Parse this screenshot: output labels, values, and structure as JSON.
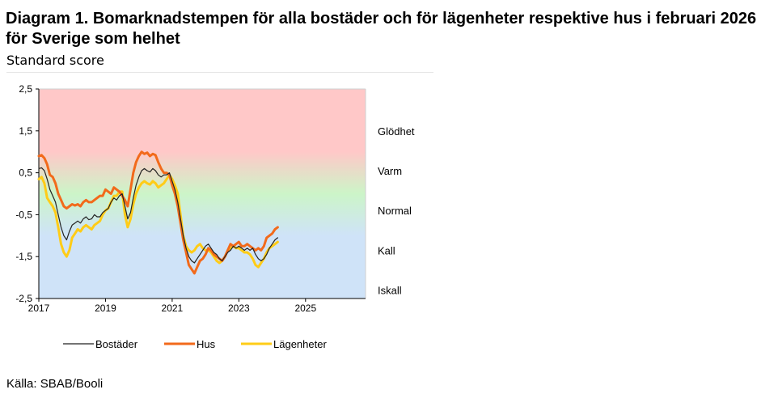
{
  "title": "Diagram 1. Bomarknadstempen för alla bostäder och för lägenheter respektive hus i februari 2026 för Sverige som helhet",
  "subtitle": "Standard score",
  "source": "Källa: SBAB/Booli",
  "colors": {
    "bostader": "#222222",
    "hus": "#f26a1b",
    "lagenheter": "#ffcc17",
    "zone_hot": "#ffc8c8",
    "zone_normal": "#ccf5c8",
    "zone_cold": "#cfe3f8"
  },
  "chart_data": {
    "type": "line",
    "x_start": 2017.0,
    "x_step_months": 1,
    "xlim": [
      2017.0,
      2026.8
    ],
    "ylim": [
      -2.5,
      2.5
    ],
    "ylabel": "Standard score",
    "x_ticks": [
      "2017",
      "2019",
      "2021",
      "2023",
      "2025"
    ],
    "y_ticks": [
      "2,5",
      "1,5",
      "0,5",
      "-0,5",
      "-1,5",
      "-2,5"
    ],
    "zones": [
      {
        "label": "Glödhet",
        "y": 1.5
      },
      {
        "label": "Varm",
        "y": 0.55
      },
      {
        "label": "Normal",
        "y": -0.4
      },
      {
        "label": "Kall",
        "y": -1.35
      },
      {
        "label": "Iskall",
        "y": -2.3
      }
    ],
    "series": [
      {
        "name": "Bostäder",
        "key": "bostader",
        "values": [
          0.6,
          0.62,
          0.55,
          0.35,
          0.1,
          -0.05,
          -0.2,
          -0.5,
          -0.8,
          -1.0,
          -1.1,
          -0.9,
          -0.75,
          -0.7,
          -0.65,
          -0.7,
          -0.6,
          -0.55,
          -0.62,
          -0.6,
          -0.5,
          -0.55,
          -0.55,
          -0.45,
          -0.4,
          -0.35,
          -0.2,
          -0.1,
          -0.15,
          -0.05,
          0.0,
          -0.3,
          -0.6,
          -0.45,
          -0.1,
          0.2,
          0.4,
          0.55,
          0.6,
          0.55,
          0.52,
          0.6,
          0.55,
          0.45,
          0.4,
          0.45,
          0.45,
          0.5,
          0.3,
          0.1,
          -0.2,
          -0.6,
          -1.0,
          -1.3,
          -1.5,
          -1.6,
          -1.65,
          -1.55,
          -1.45,
          -1.35,
          -1.25,
          -1.2,
          -1.3,
          -1.4,
          -1.45,
          -1.55,
          -1.6,
          -1.5,
          -1.4,
          -1.35,
          -1.25,
          -1.3,
          -1.25,
          -1.3,
          -1.35,
          -1.3,
          -1.35,
          -1.3,
          -1.45,
          -1.55,
          -1.6,
          -1.55,
          -1.45,
          -1.3,
          -1.2,
          -1.1,
          -1.05
        ]
      },
      {
        "name": "Hus",
        "key": "hus",
        "values": [
          0.9,
          0.92,
          0.85,
          0.7,
          0.45,
          0.4,
          0.25,
          0.0,
          -0.15,
          -0.3,
          -0.35,
          -0.3,
          -0.25,
          -0.28,
          -0.25,
          -0.3,
          -0.2,
          -0.15,
          -0.2,
          -0.2,
          -0.15,
          -0.1,
          -0.05,
          -0.05,
          0.1,
          0.05,
          0.0,
          0.15,
          0.1,
          0.05,
          -0.05,
          -0.15,
          -0.3,
          0.1,
          0.5,
          0.75,
          0.9,
          1.0,
          0.95,
          0.98,
          0.9,
          0.95,
          0.92,
          0.75,
          0.6,
          0.5,
          0.5,
          0.45,
          0.2,
          0.0,
          -0.3,
          -0.7,
          -1.1,
          -1.4,
          -1.7,
          -1.8,
          -1.9,
          -1.75,
          -1.6,
          -1.55,
          -1.45,
          -1.3,
          -1.35,
          -1.45,
          -1.5,
          -1.55,
          -1.6,
          -1.5,
          -1.35,
          -1.2,
          -1.25,
          -1.2,
          -1.15,
          -1.25,
          -1.25,
          -1.2,
          -1.25,
          -1.3,
          -1.35,
          -1.3,
          -1.35,
          -1.25,
          -1.05,
          -1.0,
          -0.95,
          -0.85,
          -0.8
        ]
      },
      {
        "name": "Lägenheter",
        "key": "lagenheter",
        "values": [
          0.35,
          0.4,
          0.25,
          -0.1,
          -0.2,
          -0.3,
          -0.45,
          -0.8,
          -1.2,
          -1.4,
          -1.5,
          -1.35,
          -1.05,
          -0.95,
          -0.85,
          -0.9,
          -0.8,
          -0.75,
          -0.8,
          -0.85,
          -0.75,
          -0.7,
          -0.65,
          -0.5,
          -0.4,
          -0.35,
          -0.2,
          -0.05,
          -0.05,
          0.05,
          0.05,
          -0.5,
          -0.8,
          -0.6,
          -0.25,
          0.0,
          0.15,
          0.25,
          0.3,
          0.25,
          0.22,
          0.3,
          0.25,
          0.15,
          0.2,
          0.25,
          0.35,
          0.45,
          0.35,
          0.2,
          0.0,
          -0.5,
          -1.0,
          -1.25,
          -1.35,
          -1.4,
          -1.35,
          -1.25,
          -1.2,
          -1.3,
          -1.35,
          -1.35,
          -1.4,
          -1.5,
          -1.6,
          -1.65,
          -1.6,
          -1.5,
          -1.35,
          -1.3,
          -1.25,
          -1.3,
          -1.3,
          -1.35,
          -1.4,
          -1.4,
          -1.45,
          -1.55,
          -1.7,
          -1.75,
          -1.65,
          -1.55,
          -1.4,
          -1.3,
          -1.25,
          -1.2,
          -1.15
        ]
      }
    ],
    "legend": {
      "position": "bottom",
      "items": [
        "Bostäder",
        "Hus",
        "Lägenheter"
      ]
    }
  }
}
